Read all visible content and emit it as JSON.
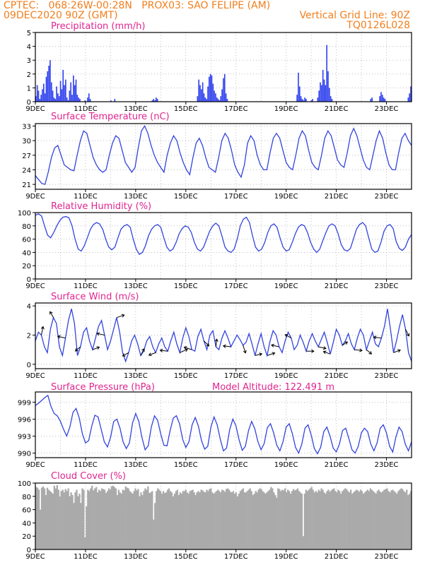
{
  "header": {
    "line1": "CPTEC:   068:26W-00:28N   PROX03: SAO FELIPE (AM)",
    "line2_left": "09DEC2020 90Z (GMT)",
    "line2_right": "Vertical Grid Line: 90Z",
    "line3_right": "TQ0126L028"
  },
  "x_labels": [
    "9DEC",
    "11DEC",
    "13DEC",
    "15DEC",
    "17DEC",
    "19DEC",
    "21DEC",
    "23DEC"
  ],
  "colors": {
    "header": "#f07f1e",
    "title": "#e0258f",
    "line": "#3344dd",
    "bar": "#3344ee",
    "cloud": "#aaaaaa",
    "arrow": "#000000"
  },
  "chart_data": [
    {
      "type": "bar",
      "title": "Precipitation (mm/h)",
      "ylim": [
        0,
        5
      ],
      "yticks": [
        0,
        1,
        2,
        3,
        4,
        5
      ],
      "values": [
        0.4,
        1.2,
        0.8,
        0.2,
        0.5,
        0.9,
        1.3,
        0.6,
        1.8,
        2.2,
        2.6,
        3.0,
        1.4,
        0.8,
        0.3,
        0.2,
        1.1,
        0.6,
        0.4,
        1.5,
        0.9,
        2.3,
        1.2,
        1.6,
        0.3,
        0.1,
        0.8,
        1.4,
        0.5,
        1.9,
        1.2,
        1.6,
        0.5,
        0.3,
        0.2,
        0,
        0,
        0,
        0.1,
        0,
        0.3,
        0.6,
        0.2,
        0,
        0,
        0,
        0,
        0,
        0,
        0,
        0,
        0,
        0,
        0,
        0,
        0,
        0,
        0,
        0.1,
        0,
        0,
        0.2,
        0,
        0,
        0,
        0,
        0,
        0,
        0,
        0,
        0,
        0,
        0,
        0,
        0,
        0,
        0,
        0,
        0,
        0,
        0,
        0,
        0,
        0,
        0,
        0,
        0,
        0,
        0,
        0,
        0.1,
        0.2,
        0.1,
        0.3,
        0.2,
        0,
        0,
        0,
        0,
        0,
        0,
        0,
        0,
        0,
        0,
        0,
        0,
        0,
        0,
        0,
        0,
        0,
        0,
        0,
        0,
        0,
        0,
        0,
        0,
        0,
        0,
        0,
        0,
        0,
        0,
        0.4,
        1.6,
        1.2,
        0.9,
        1.4,
        0.6,
        0.3,
        0.2,
        1.1,
        1.8,
        2.0,
        1.9,
        1.3,
        0.8,
        0.6,
        0.3,
        0.2,
        0.1,
        0.4,
        0.9,
        1.7,
        2.0,
        0.6,
        0.2,
        0,
        0,
        0,
        0,
        0,
        0,
        0,
        0,
        0,
        0,
        0,
        0,
        0,
        0,
        0,
        0,
        0,
        0,
        0,
        0,
        0,
        0,
        0,
        0,
        0,
        0,
        0,
        0,
        0,
        0,
        0,
        0,
        0,
        0,
        0,
        0,
        0,
        0,
        0,
        0,
        0,
        0,
        0,
        0,
        0,
        0,
        0,
        0,
        0,
        0,
        0,
        0,
        0,
        0.5,
        2.1,
        1.1,
        0.4,
        0.2,
        0.1,
        0.3,
        0.2,
        0,
        0,
        0,
        0.1,
        0.2,
        0,
        0,
        0,
        0.3,
        0.8,
        1.4,
        1.2,
        2.3,
        1.6,
        1.2,
        4.1,
        2.2,
        1.0,
        0.4,
        0.2,
        0,
        0,
        0,
        0,
        0,
        0,
        0,
        0,
        0,
        0,
        0,
        0,
        0,
        0,
        0,
        0,
        0,
        0,
        0,
        0,
        0,
        0,
        0,
        0,
        0,
        0,
        0,
        0,
        0,
        0.2,
        0.3,
        0,
        0,
        0,
        0,
        0,
        0.4,
        0.7,
        0.5,
        0.3,
        0.2,
        0,
        0,
        0,
        0,
        0,
        0,
        0,
        0,
        0,
        0,
        0,
        0,
        0,
        0,
        0,
        0,
        0,
        0.3,
        0.6,
        1.1
      ]
    },
    {
      "type": "line",
      "title": "Surface Temperature (nC)",
      "ylim": [
        20,
        33.5
      ],
      "yticks": [
        21,
        24,
        27,
        30,
        33
      ],
      "values": [
        22.8,
        22.0,
        21.2,
        21.0,
        23.5,
        26.5,
        28.5,
        29.0,
        27.0,
        25.0,
        24.5,
        24.0,
        23.8,
        27.0,
        30.0,
        32.0,
        31.5,
        29.0,
        26.5,
        25.0,
        24.0,
        23.5,
        24.0,
        27.0,
        29.5,
        31.0,
        30.5,
        28.0,
        25.5,
        24.5,
        23.5,
        24.5,
        28.5,
        32.0,
        33.0,
        31.5,
        29.0,
        27.0,
        25.5,
        24.5,
        23.5,
        27.0,
        29.5,
        31.0,
        30.0,
        27.5,
        25.5,
        24.0,
        23.0,
        26.5,
        29.5,
        30.5,
        29.0,
        26.5,
        24.5,
        24.0,
        23.5,
        26.5,
        30.0,
        31.5,
        30.5,
        28.0,
        25.0,
        23.5,
        22.5,
        25.0,
        29.5,
        31.0,
        30.0,
        27.0,
        25.0,
        24.0,
        24.0,
        27.5,
        30.5,
        31.5,
        30.5,
        28.0,
        25.5,
        24.5,
        24.0,
        27.0,
        30.5,
        32.0,
        31.0,
        28.0,
        25.5,
        24.5,
        24.0,
        27.0,
        30.5,
        32.0,
        31.0,
        28.5,
        26.0,
        25.0,
        24.5,
        27.5,
        31.0,
        32.5,
        31.0,
        28.5,
        26.0,
        24.5,
        24.0,
        27.0,
        30.0,
        32.0,
        30.5,
        27.5,
        25.0,
        24.0,
        24.0,
        27.5,
        30.5,
        31.5,
        30.0,
        29.0
      ]
    },
    {
      "type": "line",
      "title": "Relative Humidity (%)",
      "ylim": [
        0,
        100
      ],
      "yticks": [
        0,
        20,
        40,
        60,
        80,
        100
      ],
      "values": [
        96,
        98,
        95,
        80,
        66,
        62,
        70,
        80,
        88,
        93,
        94,
        92,
        80,
        60,
        45,
        42,
        50,
        62,
        75,
        82,
        85,
        83,
        75,
        60,
        48,
        44,
        48,
        62,
        75,
        80,
        82,
        78,
        60,
        45,
        37,
        40,
        50,
        65,
        75,
        80,
        82,
        78,
        62,
        48,
        42,
        45,
        55,
        68,
        76,
        80,
        78,
        70,
        55,
        45,
        42,
        48,
        60,
        72,
        80,
        84,
        80,
        65,
        48,
        42,
        40,
        45,
        60,
        80,
        90,
        93,
        85,
        65,
        48,
        42,
        45,
        55,
        70,
        80,
        83,
        78,
        62,
        48,
        42,
        44,
        55,
        68,
        78,
        82,
        80,
        70,
        55,
        45,
        40,
        45,
        58,
        70,
        80,
        83,
        80,
        68,
        52,
        44,
        42,
        46,
        60,
        75,
        82,
        85,
        80,
        62,
        45,
        40,
        42,
        55,
        72,
        80,
        82,
        76,
        56,
        46,
        43,
        48,
        60,
        67
      ]
    },
    {
      "type": "line",
      "title": "Surface Wind (m/s)",
      "ylim": [
        -0.3,
        4.2
      ],
      "yticks": [
        0,
        2,
        4
      ],
      "values": [
        1.6,
        2.2,
        2.0,
        1.2,
        0.8,
        2.4,
        3.2,
        2.8,
        1.2,
        0.6,
        1.8,
        3.0,
        3.8,
        2.8,
        0.6,
        1.2,
        2.2,
        2.5,
        1.6,
        1.0,
        1.8,
        2.6,
        3.0,
        2.0,
        1.0,
        1.6,
        2.4,
        3.2,
        2.2,
        0.8,
        0.2,
        0.8,
        1.6,
        2.0,
        1.4,
        0.6,
        0.9,
        1.6,
        1.9,
        1.2,
        0.8,
        1.4,
        1.8,
        1.2,
        0.9,
        1.6,
        2.2,
        1.4,
        0.8,
        1.8,
        2.5,
        1.9,
        1.0,
        0.9,
        1.9,
        2.4,
        1.6,
        1.0,
        2.0,
        2.3,
        1.2,
        1.0,
        1.8,
        2.3,
        1.8,
        1.2,
        1.6,
        2.0,
        1.7,
        1.3,
        1.5,
        2.1,
        1.4,
        0.6,
        1.4,
        2.1,
        1.2,
        0.6,
        1.6,
        2.3,
        2.0,
        1.2,
        0.8,
        1.6,
        2.2,
        1.8,
        1.0,
        1.3,
        2.0,
        1.5,
        0.9,
        1.6,
        2.1,
        1.6,
        1.2,
        1.7,
        2.2,
        1.5,
        0.7,
        1.5,
        2.4,
        2.0,
        1.3,
        1.6,
        2.1,
        1.4,
        1.0,
        1.8,
        2.4,
        2.0,
        1.0,
        1.6,
        2.2,
        1.4,
        1.2,
        1.8,
        2.6,
        3.8,
        2.4,
        0.8,
        1.6,
        2.6,
        3.4,
        2.4,
        0.8,
        0.2
      ],
      "vectors": [
        [
          0.2,
          1.0
        ],
        [
          -0.4,
          0.7
        ],
        [
          -0.9,
          0.2
        ],
        [
          -0.6,
          -0.5
        ],
        [
          0.8,
          0.3
        ],
        [
          -0.9,
          0.2
        ],
        [
          0.9,
          0.3
        ],
        [
          -0.7,
          -0.4
        ],
        [
          0.4,
          0.8
        ],
        [
          -0.8,
          -0.3
        ],
        [
          -0.9,
          0.1
        ],
        [
          0.9,
          0.4
        ],
        [
          -0.9,
          0.3
        ],
        [
          0.6,
          -0.6
        ],
        [
          0.1,
          0.9
        ],
        [
          -0.9,
          0.1
        ],
        [
          0.3,
          -0.9
        ],
        [
          0.8,
          0.2
        ],
        [
          0.9,
          0.3
        ],
        [
          -0.9,
          0.2
        ],
        [
          -0.7,
          0.4
        ],
        [
          0.9,
          0.0
        ],
        [
          0.9,
          -0.2
        ],
        [
          -0.8,
          0.3
        ],
        [
          0.6,
          0.4
        ],
        [
          0.9,
          -0.1
        ],
        [
          0.6,
          -0.5
        ],
        [
          -0.9,
          0.1
        ],
        [
          0.8,
          0.3
        ],
        [
          0.4,
          -0.8
        ]
      ]
    },
    {
      "type": "line",
      "title": "Surface Pressure (hPa)",
      "annotation": "Model Altitude: 122.491  m",
      "ylim": [
        989.2,
        1000.8
      ],
      "yticks": [
        990,
        993,
        996,
        999
      ],
      "values": [
        998.4,
        998.8,
        999.3,
        999.8,
        1000.2,
        998.2,
        997.0,
        996.6,
        995.6,
        994.2,
        993.0,
        994.6,
        997.2,
        997.9,
        996.2,
        993.4,
        991.8,
        992.2,
        994.8,
        996.7,
        996.4,
        994.2,
        992.0,
        991.1,
        992.8,
        995.6,
        996.0,
        994.4,
        992.0,
        990.8,
        991.8,
        995.3,
        997.0,
        995.6,
        992.8,
        990.6,
        991.3,
        994.6,
        996.6,
        995.8,
        993.4,
        991.4,
        991.3,
        994.0,
        996.2,
        996.6,
        995.2,
        992.4,
        991.0,
        992.0,
        995.0,
        996.3,
        994.8,
        992.2,
        990.7,
        991.2,
        994.6,
        996.4,
        995.0,
        992.4,
        990.4,
        990.9,
        994.2,
        996.0,
        994.8,
        992.3,
        990.5,
        991.2,
        994.0,
        995.6,
        994.3,
        992.0,
        990.6,
        991.7,
        994.5,
        995.2,
        993.6,
        991.4,
        990.4,
        992.0,
        994.6,
        995.2,
        993.4,
        991.0,
        990.0,
        991.6,
        994.4,
        995.0,
        993.2,
        990.8,
        989.9,
        991.0,
        993.8,
        994.6,
        993.0,
        990.9,
        990.2,
        991.6,
        994.0,
        994.4,
        992.6,
        990.6,
        990.0,
        991.2,
        993.6,
        994.4,
        993.8,
        991.6,
        990.4,
        991.8,
        994.4,
        995.0,
        993.6,
        991.2,
        990.2,
        992.8,
        994.6,
        993.8,
        991.6,
        990.4,
        992.0
      ]
    },
    {
      "type": "area",
      "title": "Cloud Cover (%)",
      "ylim": [
        0,
        100
      ],
      "yticks": [
        0,
        20,
        40,
        60,
        80,
        100
      ],
      "values": [
        94,
        93,
        90,
        60,
        93,
        95,
        92,
        82,
        93,
        90,
        88,
        86,
        84,
        96,
        92,
        97,
        90,
        80,
        88,
        90,
        86,
        91,
        88,
        92,
        80,
        86,
        82,
        70,
        86,
        90,
        80,
        84,
        70,
        92,
        90,
        18,
        65,
        90,
        88,
        92,
        96,
        89,
        92,
        94,
        86,
        90,
        88,
        92,
        91,
        90,
        85,
        88,
        92,
        90,
        95,
        96,
        94,
        92,
        82,
        90,
        86,
        84,
        90,
        89,
        95,
        93,
        92,
        88,
        86,
        84,
        88,
        92,
        89,
        91,
        80,
        86,
        82,
        88,
        92,
        90,
        95,
        85,
        86,
        88,
        45,
        70,
        88,
        92,
        90,
        88,
        84,
        88,
        85,
        86,
        90,
        92,
        88,
        86,
        80,
        84,
        88,
        90,
        82,
        86,
        84,
        88,
        88,
        90,
        86,
        84,
        88,
        89,
        90,
        86,
        82,
        86,
        88,
        86,
        90,
        89,
        87,
        86,
        90,
        88,
        91,
        92,
        86,
        84,
        86,
        88,
        90,
        88,
        86,
        90,
        89,
        87,
        91,
        92,
        90,
        87,
        86,
        88,
        84,
        86,
        80,
        84,
        88,
        90,
        92,
        86,
        86,
        88,
        90,
        92,
        88,
        82,
        84,
        88,
        86,
        90,
        92,
        91,
        88,
        86,
        84,
        86,
        88,
        90,
        94,
        92,
        86,
        82,
        78,
        92,
        91,
        88,
        90,
        89,
        92,
        86,
        90,
        88,
        84,
        88,
        91,
        89,
        90,
        92,
        88,
        86,
        84,
        20,
        84,
        90,
        88,
        90,
        92,
        94,
        90,
        86,
        88,
        86,
        90,
        88,
        92,
        90,
        86,
        84,
        88,
        90,
        87,
        89,
        91,
        92,
        88,
        86,
        90,
        88,
        84,
        88,
        90,
        92,
        91,
        88,
        86,
        90,
        84,
        86,
        88,
        90,
        89,
        87,
        90,
        88,
        84,
        86,
        88,
        90,
        88,
        92,
        90,
        88,
        86,
        84,
        88,
        90,
        87,
        86,
        88,
        90,
        91,
        92,
        88,
        86,
        89,
        90,
        88,
        86,
        84,
        88,
        90,
        92,
        91,
        88,
        86,
        90,
        82,
        84,
        88
      ]
    }
  ]
}
